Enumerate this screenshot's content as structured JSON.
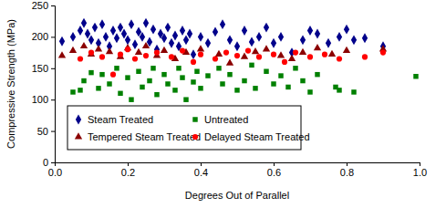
{
  "chart_data": {
    "type": "scatter",
    "x_label": "Degrees Out of Parallel",
    "y_label": "Compressive Strength (MPa)",
    "xlim": [
      0,
      1
    ],
    "ylim": [
      0,
      250
    ],
    "xticks": [
      {
        "value": 0,
        "label": "0.0"
      },
      0.2,
      0.4,
      0.6,
      0.8,
      {
        "value": 1,
        "label": "1.0"
      }
    ],
    "yticks": [
      0,
      50,
      100,
      150,
      200,
      250
    ],
    "legend": "lower left",
    "grid": false,
    "series": [
      {
        "name": "Steam Treated",
        "color": "#00008b",
        "marker": "diamond",
        "x": [
          0.02,
          0.05,
          0.07,
          0.08,
          0.09,
          0.1,
          0.11,
          0.12,
          0.13,
          0.14,
          0.15,
          0.16,
          0.17,
          0.18,
          0.19,
          0.2,
          0.21,
          0.22,
          0.23,
          0.24,
          0.25,
          0.26,
          0.27,
          0.28,
          0.29,
          0.3,
          0.31,
          0.32,
          0.33,
          0.34,
          0.35,
          0.36,
          0.37,
          0.38,
          0.4,
          0.42,
          0.44,
          0.46,
          0.48,
          0.5,
          0.52,
          0.54,
          0.56,
          0.58,
          0.6,
          0.62,
          0.65,
          0.68,
          0.7,
          0.72,
          0.75,
          0.78,
          0.8,
          0.82,
          0.85,
          0.9
        ],
        "values": [
          193,
          200,
          210,
          222,
          205,
          195,
          215,
          190,
          220,
          200,
          185,
          210,
          198,
          215,
          205,
          195,
          220,
          188,
          208,
          200,
          222,
          192,
          212,
          180,
          205,
          198,
          215,
          190,
          202,
          185,
          210,
          195,
          205,
          172,
          200,
          190,
          208,
          220,
          195,
          185,
          210,
          192,
          200,
          215,
          190,
          200,
          175,
          195,
          210,
          205,
          190,
          200,
          212,
          195,
          198,
          185
        ]
      },
      {
        "name": "Untreated",
        "color": "#008000",
        "marker": "square",
        "x": [
          0.05,
          0.07,
          0.08,
          0.1,
          0.12,
          0.13,
          0.15,
          0.17,
          0.18,
          0.2,
          0.21,
          0.23,
          0.24,
          0.26,
          0.27,
          0.28,
          0.3,
          0.31,
          0.33,
          0.34,
          0.35,
          0.36,
          0.38,
          0.39,
          0.4,
          0.42,
          0.45,
          0.46,
          0.48,
          0.5,
          0.52,
          0.54,
          0.55,
          0.58,
          0.6,
          0.62,
          0.64,
          0.66,
          0.68,
          0.7,
          0.72,
          0.77,
          0.78,
          0.82,
          0.99
        ],
        "values": [
          112,
          115,
          130,
          143,
          118,
          140,
          125,
          150,
          110,
          135,
          100,
          145,
          120,
          130,
          150,
          108,
          140,
          125,
          115,
          150,
          135,
          100,
          128,
          145,
          118,
          138,
          150,
          125,
          140,
          115,
          130,
          155,
          118,
          145,
          125,
          138,
          120,
          150,
          130,
          112,
          140,
          120,
          115,
          112,
          137
        ]
      },
      {
        "name": "Tempered Steam Treated",
        "color": "#8b0000",
        "marker": "triangle",
        "x": [
          0.02,
          0.05,
          0.08,
          0.1,
          0.12,
          0.15,
          0.18,
          0.2,
          0.23,
          0.25,
          0.28,
          0.3,
          0.33,
          0.36,
          0.4,
          0.45,
          0.48,
          0.52,
          0.55,
          0.58,
          0.62,
          0.65,
          0.68,
          0.72,
          0.76,
          0.8,
          0.9
        ],
        "values": [
          170,
          178,
          185,
          172,
          180,
          176,
          168,
          182,
          175,
          185,
          170,
          178,
          165,
          175,
          180,
          172,
          158,
          168,
          176,
          180,
          170,
          165,
          175,
          182,
          172,
          178,
          180
        ]
      },
      {
        "name": "Delayed Steam Treated",
        "color": "#ff0000",
        "marker": "circle",
        "x": [
          0.07,
          0.1,
          0.13,
          0.16,
          0.18,
          0.2,
          0.22,
          0.25,
          0.28,
          0.32,
          0.35,
          0.38,
          0.4,
          0.44,
          0.47,
          0.5,
          0.53,
          0.56,
          0.6,
          0.63,
          0.66,
          0.7,
          0.74,
          0.78,
          0.85,
          0.9
        ],
        "values": [
          165,
          175,
          168,
          140,
          172,
          180,
          165,
          170,
          175,
          168,
          178,
          160,
          172,
          165,
          175,
          170,
          178,
          168,
          172,
          160,
          175,
          168,
          172,
          165,
          168,
          175
        ]
      }
    ]
  }
}
